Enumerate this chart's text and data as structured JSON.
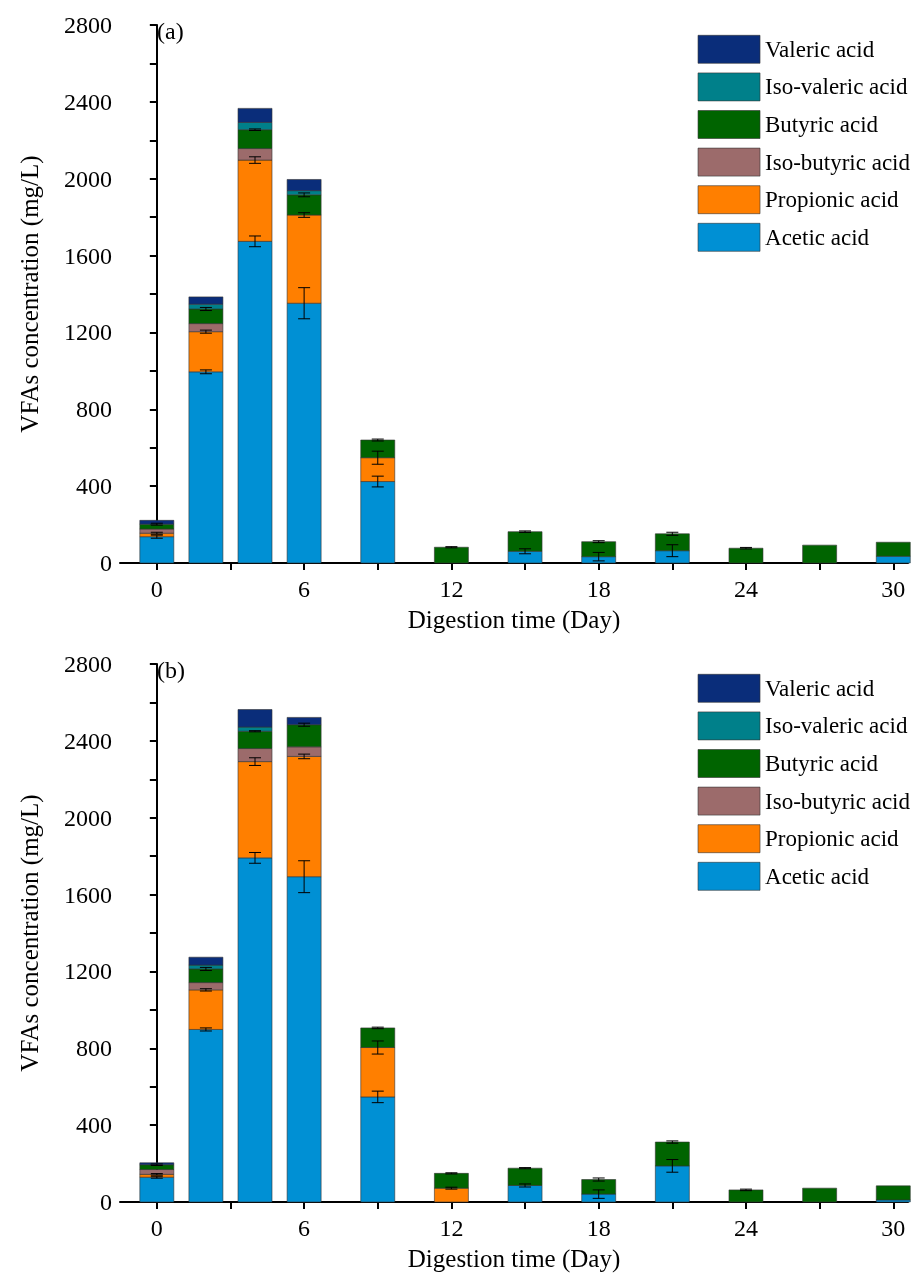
{
  "chart_data": [
    {
      "type": "bar",
      "title": "(a)",
      "xlabel": "Digestion time (Day)",
      "ylabel": "VFAs concentration (mg/L)",
      "stacked": true,
      "legend": "top right",
      "grid": false,
      "x": [
        0,
        2,
        4,
        6,
        9,
        12,
        15,
        18,
        21,
        24,
        27,
        30
      ],
      "xlim": [
        -1.5,
        30.6
      ],
      "xticks": [
        0,
        {
          "value": 3,
          "label": null
        },
        6,
        {
          "value": 9,
          "label": null
        },
        12,
        {
          "value": 15,
          "label": null
        },
        18,
        {
          "value": 21,
          "label": null
        },
        24,
        {
          "value": 27,
          "label": null
        },
        30
      ],
      "ylim": [
        0,
        2800
      ],
      "yticks": [
        0,
        {
          "value": 200,
          "label": null
        },
        400,
        {
          "value": 600,
          "label": null
        },
        800,
        {
          "value": 1000,
          "label": null
        },
        1200,
        {
          "value": 1400,
          "label": null
        },
        1600,
        {
          "value": 1800,
          "label": null
        },
        2000,
        {
          "value": 2200,
          "label": null
        },
        2400,
        {
          "value": 2600,
          "label": null
        },
        2800
      ],
      "series": [
        {
          "name": "Acetic acid",
          "color": "#0090d4",
          "values": [
            137,
            995,
            1674,
            1352,
            424,
            null,
            61,
            33,
            64,
            null,
            null,
            35
          ],
          "errors": [
            8,
            10,
            28,
            81,
            28,
            null,
            13,
            22,
            31,
            null,
            null,
            null
          ]
        },
        {
          "name": "Propionic acid",
          "color": "#ff7f00",
          "values": [
            18,
            209,
            423,
            459,
            124,
            null,
            null,
            null,
            null,
            null,
            null,
            null
          ],
          "errors": [
            5,
            8,
            17,
            12,
            34,
            null,
            null,
            null,
            null,
            null,
            null,
            null
          ]
        },
        {
          "name": "Iso-butyric acid",
          "color": "#9c6b6b",
          "values": [
            22,
            42,
            60,
            null,
            null,
            null,
            null,
            null,
            null,
            null,
            null,
            null
          ]
        },
        {
          "name": "Butyric acid",
          "color": "#006400",
          "values": [
            25,
            76,
            98,
            105,
            92,
            82,
            102,
            78,
            88,
            77,
            93,
            73
          ],
          "errors": [
            5,
            8,
            4,
            10,
            5,
            3,
            4,
            5,
            8,
            4,
            null,
            null
          ]
        },
        {
          "name": "Iso-valeric acid",
          "color": "#00808a",
          "values": [
            null,
            25,
            38,
            22,
            null,
            null,
            null,
            null,
            null,
            null,
            null,
            null
          ]
        },
        {
          "name": "Valeric acid",
          "color": "#0a2d7a",
          "values": [
            20,
            38,
            73,
            58,
            null,
            null,
            null,
            null,
            null,
            null,
            null,
            null
          ]
        }
      ]
    },
    {
      "type": "bar",
      "title": "(b)",
      "xlabel": "Digestion time (Day)",
      "ylabel": "VFAs concentration (mg/L)",
      "stacked": true,
      "legend": "top right",
      "grid": false,
      "x": [
        0,
        2,
        4,
        6,
        9,
        12,
        15,
        18,
        21,
        24,
        27,
        30
      ],
      "xlim": [
        -1.5,
        30.6
      ],
      "xticks": [
        0,
        {
          "value": 3,
          "label": null
        },
        6,
        {
          "value": 9,
          "label": null
        },
        12,
        {
          "value": 15,
          "label": null
        },
        18,
        {
          "value": 21,
          "label": null
        },
        24,
        {
          "value": 27,
          "label": null
        },
        30
      ],
      "ylim": [
        0,
        2800
      ],
      "yticks": [
        0,
        {
          "value": 200,
          "label": null
        },
        400,
        {
          "value": 600,
          "label": null
        },
        800,
        {
          "value": 1000,
          "label": null
        },
        1200,
        {
          "value": 1400,
          "label": null
        },
        1600,
        {
          "value": 1800,
          "label": null
        },
        2000,
        {
          "value": 2200,
          "label": null
        },
        2400,
        {
          "value": 2600,
          "label": null
        },
        2800
      ],
      "series": [
        {
          "name": "Acetic acid",
          "color": "#0090d4",
          "values": [
            129,
            898,
            1791,
            1693,
            547,
            null,
            86,
            41,
            188,
            null,
            null,
            11
          ],
          "errors": [
            5,
            8,
            28,
            83,
            30,
            null,
            8,
            22,
            33,
            null,
            null,
            null
          ]
        },
        {
          "name": "Propionic acid",
          "color": "#ff7f00",
          "values": [
            15,
            206,
            501,
            626,
            257,
            72,
            null,
            null,
            null,
            null,
            null,
            null
          ],
          "errors": [
            4,
            6,
            20,
            12,
            34,
            5,
            null,
            null,
            null,
            null,
            null,
            null
          ]
        },
        {
          "name": "Iso-butyric acid",
          "color": "#9c6b6b",
          "values": [
            25,
            38,
            68,
            50,
            null,
            null,
            null,
            null,
            null,
            null,
            null,
            null
          ]
        },
        {
          "name": "Butyric acid",
          "color": "#006400",
          "values": [
            25,
            71,
            90,
            115,
            102,
            77,
            90,
            76,
            124,
            63,
            72,
            73
          ],
          "errors": [
            4,
            8,
            3,
            8,
            4,
            3,
            3,
            8,
            6,
            4,
            null,
            null
          ]
        },
        {
          "name": "Iso-valeric acid",
          "color": "#00808a",
          "values": [
            null,
            20,
            22,
            null,
            null,
            null,
            null,
            null,
            null,
            null,
            null,
            null
          ]
        },
        {
          "name": "Valeric acid",
          "color": "#0a2d7a",
          "values": [
            10,
            41,
            91,
            38,
            null,
            null,
            null,
            null,
            null,
            null,
            null,
            null
          ]
        }
      ]
    }
  ]
}
